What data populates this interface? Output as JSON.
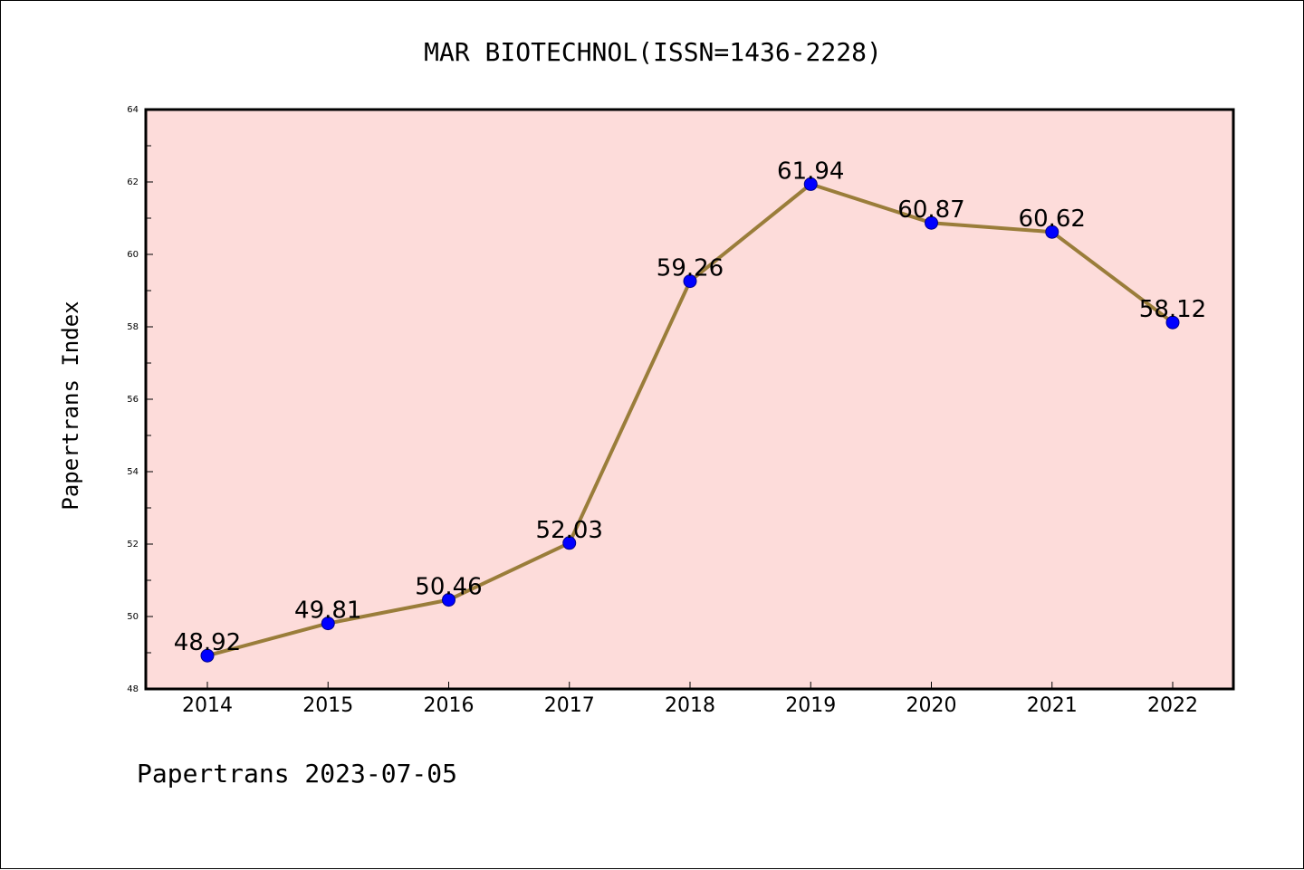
{
  "chart_data": {
    "type": "line",
    "title": "MAR BIOTECHNOL(ISSN=1436-2228)",
    "ylabel": "Papertrans Index",
    "xlabel": "",
    "footer": "Papertrans 2023-07-05",
    "categories": [
      "2014",
      "2015",
      "2016",
      "2017",
      "2018",
      "2019",
      "2020",
      "2021",
      "2022"
    ],
    "values": [
      48.92,
      49.81,
      50.46,
      52.03,
      59.26,
      61.94,
      60.87,
      60.62,
      58.12
    ],
    "data_labels": [
      "48.92",
      "49.81",
      "50.46",
      "52.03",
      "59.26",
      "61.94",
      "60.87",
      "60.62",
      "58.12"
    ],
    "ylim": [
      48,
      64
    ],
    "yticks": [
      "48",
      "50",
      "52",
      "54",
      "56",
      "58",
      "60",
      "62",
      "64"
    ],
    "grid": false,
    "legend": "none",
    "colors": {
      "plot_background": "#fddcda",
      "line": "#9a7d3a",
      "marker": "#0000ff",
      "axis": "#000000"
    }
  }
}
